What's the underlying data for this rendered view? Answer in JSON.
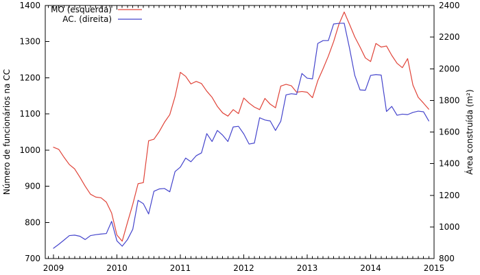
{
  "figure": {
    "background": "#ffffff",
    "border_color": "#000000",
    "tick_color": "#000000",
    "text_color": "#000000"
  },
  "chart_data": {
    "type": "line",
    "title": "",
    "grid": false,
    "legend_position": "top-left-inside",
    "x_axis": {
      "tick_labels": [
        "2009",
        "2010",
        "2011",
        "2012",
        "2013",
        "2014",
        "2015"
      ],
      "minor_tick_unit": "month",
      "range": [
        2008.87,
        2015.0
      ],
      "data_start": "2009-01",
      "data_end": "2014-12",
      "points_per_series": 72
    },
    "y_left": {
      "label": "Número de funcionários na CC",
      "min": 700,
      "max": 1400,
      "tick_step": 100,
      "ticks": [
        700,
        800,
        900,
        1000,
        1100,
        1200,
        1300,
        1400
      ]
    },
    "y_right": {
      "label": "Área construída (m²)",
      "min": 800,
      "max": 2400,
      "tick_step": 200,
      "ticks": [
        800,
        1000,
        1200,
        1400,
        1600,
        1800,
        2000,
        2200,
        2400
      ]
    },
    "series": [
      {
        "name": "MO (esquerda)",
        "axis": "left",
        "color": "#e04338",
        "values": [
          1008,
          1002,
          980,
          960,
          948,
          925,
          900,
          878,
          870,
          868,
          856,
          826,
          765,
          748,
          800,
          850,
          907,
          910,
          1026,
          1030,
          1051,
          1077,
          1098,
          1148,
          1215,
          1204,
          1183,
          1190,
          1184,
          1163,
          1146,
          1121,
          1103,
          1094,
          1112,
          1101,
          1144,
          1130,
          1119,
          1112,
          1143,
          1127,
          1117,
          1177,
          1182,
          1178,
          1160,
          1162,
          1160,
          1145,
          1192,
          1225,
          1260,
          1300,
          1348,
          1382,
          1348,
          1313,
          1285,
          1255,
          1245,
          1295,
          1285,
          1288,
          1262,
          1240,
          1228,
          1253,
          1180,
          1146,
          1130,
          1113
        ]
      },
      {
        "name": "AC. (direita)",
        "axis": "right",
        "color": "#4444cc",
        "values": [
          865,
          890,
          917,
          945,
          948,
          941,
          920,
          945,
          951,
          955,
          958,
          1035,
          912,
          878,
          920,
          985,
          1168,
          1147,
          1082,
          1225,
          1240,
          1243,
          1222,
          1350,
          1378,
          1435,
          1412,
          1450,
          1468,
          1590,
          1540,
          1610,
          1580,
          1540,
          1632,
          1636,
          1588,
          1524,
          1530,
          1690,
          1676,
          1670,
          1610,
          1668,
          1835,
          1842,
          1838,
          1970,
          1940,
          1936,
          2160,
          2178,
          2178,
          2283,
          2287,
          2288,
          2131,
          1958,
          1866,
          1864,
          1958,
          1963,
          1960,
          1730,
          1762,
          1706,
          1713,
          1710,
          1724,
          1732,
          1728,
          1670
        ]
      }
    ]
  }
}
